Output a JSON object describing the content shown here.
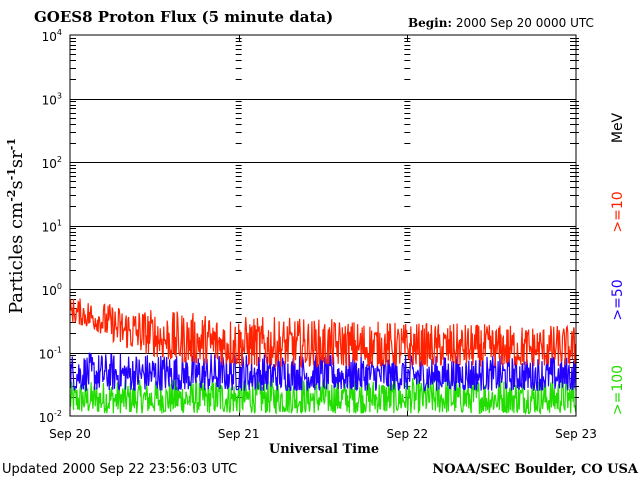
{
  "title": "GOES8 Proton Flux (5 minute data)",
  "begin_label": "Begin:",
  "begin_value": "2000 Sep 20 0000 UTC",
  "updated_label": "Updated",
  "updated_value": "2000 Sep 22 23:56:03 UTC",
  "source": "NOAA/SEC Boulder, CO USA",
  "legend": {
    "unit": "MeV",
    "items": [
      {
        "label": ">=10",
        "color": "#ff2200"
      },
      {
        "label": ">=50",
        "color": "#2200ff"
      },
      {
        "label": ">=100",
        "color": "#22dd00"
      }
    ]
  },
  "chart_data": {
    "type": "line",
    "title": "GOES8 Proton Flux (5 minute data)",
    "xlabel": "Universal Time",
    "ylabel": "Particles cm-2s-1sr-1",
    "ylabel_parts": [
      {
        "text": "Particles cm",
        "sup": false
      },
      {
        "text": "-2",
        "sup": true
      },
      {
        "text": "s",
        "sup": false
      },
      {
        "text": "-1",
        "sup": true
      },
      {
        "text": "sr",
        "sup": false
      },
      {
        "text": "-1",
        "sup": true
      }
    ],
    "yscale": "log",
    "ylim": [
      0.01,
      10000
    ],
    "ytick_labels": [
      {
        "base": "10",
        "exp": "-2",
        "value": 0.01
      },
      {
        "base": "10",
        "exp": "-1",
        "value": 0.1
      },
      {
        "base": "10",
        "exp": "0",
        "value": 1
      },
      {
        "base": "10",
        "exp": "1",
        "value": 10
      },
      {
        "base": "10",
        "exp": "2",
        "value": 100
      },
      {
        "base": "10",
        "exp": "3",
        "value": 1000
      },
      {
        "base": "10",
        "exp": "4",
        "value": 10000
      }
    ],
    "x_categories": [
      "Sep 20",
      "Sep 21",
      "Sep 22",
      "Sep 23"
    ],
    "xlim_days": [
      0,
      3
    ],
    "grid": true,
    "legend_placement": "right",
    "series": [
      {
        "name": ">=10 MeV",
        "color": "#ff2200",
        "envelope_days": [
          0,
          0.1,
          0.3,
          0.6,
          1.0,
          1.5,
          2.0,
          2.5,
          3.0
        ],
        "envelope_high": [
          0.75,
          0.7,
          0.55,
          0.45,
          0.38,
          0.34,
          0.3,
          0.28,
          0.27
        ],
        "envelope_low": [
          0.3,
          0.25,
          0.12,
          0.07,
          0.06,
          0.06,
          0.06,
          0.06,
          0.06
        ]
      },
      {
        "name": ">=50 MeV",
        "color": "#2200ff",
        "envelope_days": [
          0,
          1.0,
          2.0,
          3.0
        ],
        "envelope_high": [
          0.1,
          0.1,
          0.09,
          0.09
        ],
        "envelope_low": [
          0.025,
          0.025,
          0.025,
          0.025
        ]
      },
      {
        "name": ">=100 MeV",
        "color": "#22dd00",
        "envelope_days": [
          0,
          1.0,
          2.0,
          3.0
        ],
        "envelope_high": [
          0.035,
          0.04,
          0.04,
          0.04
        ],
        "envelope_low": [
          0.011,
          0.011,
          0.011,
          0.011
        ]
      }
    ]
  }
}
